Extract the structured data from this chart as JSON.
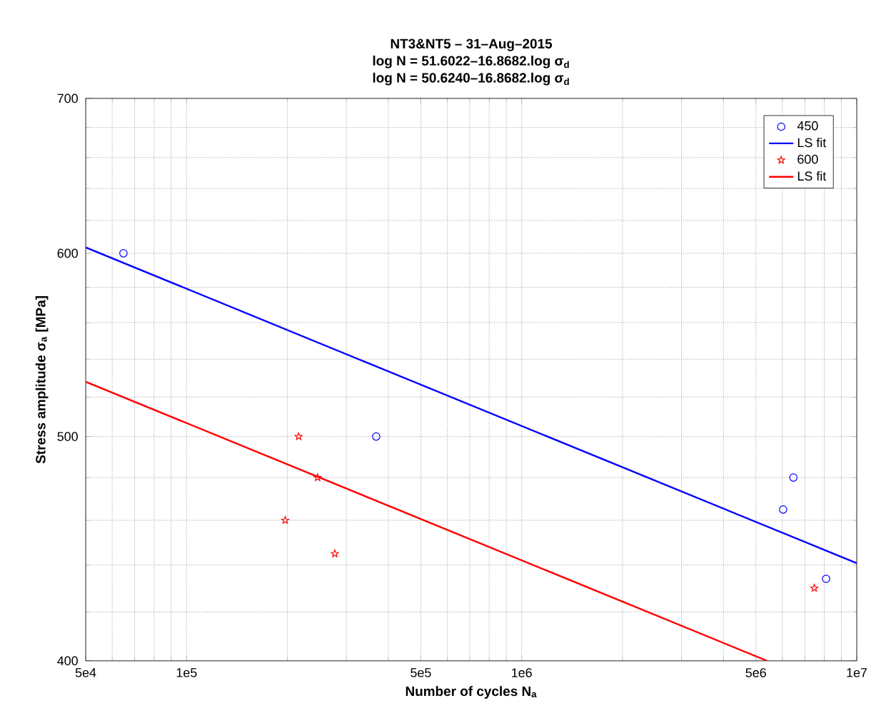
{
  "chart_data": {
    "type": "scatter",
    "title": "NT3&NT5  – 31–Aug–2015",
    "annotations": [
      "log N = 51.6022–16.8682.log σ$_{d}$",
      "log N = 50.6240–16.8682.log σ$_{d}$"
    ],
    "xlabel": "Number of cycles N$_{a}$",
    "ylabel": "Stress amplitude σ$_{a}$ [MPa]",
    "log": "xy",
    "xlim": [
      50000,
      10000000
    ],
    "ylim": [
      400,
      700
    ],
    "xticks": [
      {
        "value": 50000,
        "label": "5e4"
      },
      {
        "value": 100000,
        "label": "1e5"
      },
      {
        "value": 500000,
        "label": "5e5"
      },
      {
        "value": 1000000,
        "label": "1e6"
      },
      {
        "value": 5000000,
        "label": "5e6"
      },
      {
        "value": 10000000,
        "label": "1e7"
      }
    ],
    "yticks": [
      400,
      500,
      600,
      700
    ],
    "grid": true,
    "legend": "top right",
    "series": [
      {
        "name": "450",
        "marker": "circle",
        "color": "#0000ff",
        "x": [
          64800,
          368000,
          6470000,
          6030000,
          8100000
        ],
        "values": [
          600,
          500,
          480,
          465,
          434
        ]
      },
      {
        "name": "LS fit",
        "type": "line",
        "color": "#0000ff",
        "x": [
          50000,
          10000000
        ],
        "values": [
          603.5,
          440.8
        ]
      },
      {
        "name": "600",
        "marker": "star",
        "color": "#ff0000",
        "x": [
          216000,
          246000,
          197000,
          277000,
          7470000
        ],
        "values": [
          500,
          480,
          460,
          445,
          430
        ]
      },
      {
        "name": "LS fit",
        "type": "line",
        "color": "#ff0000",
        "x": [
          50000,
          5400000
        ],
        "values": [
          528,
          400
        ]
      }
    ]
  }
}
